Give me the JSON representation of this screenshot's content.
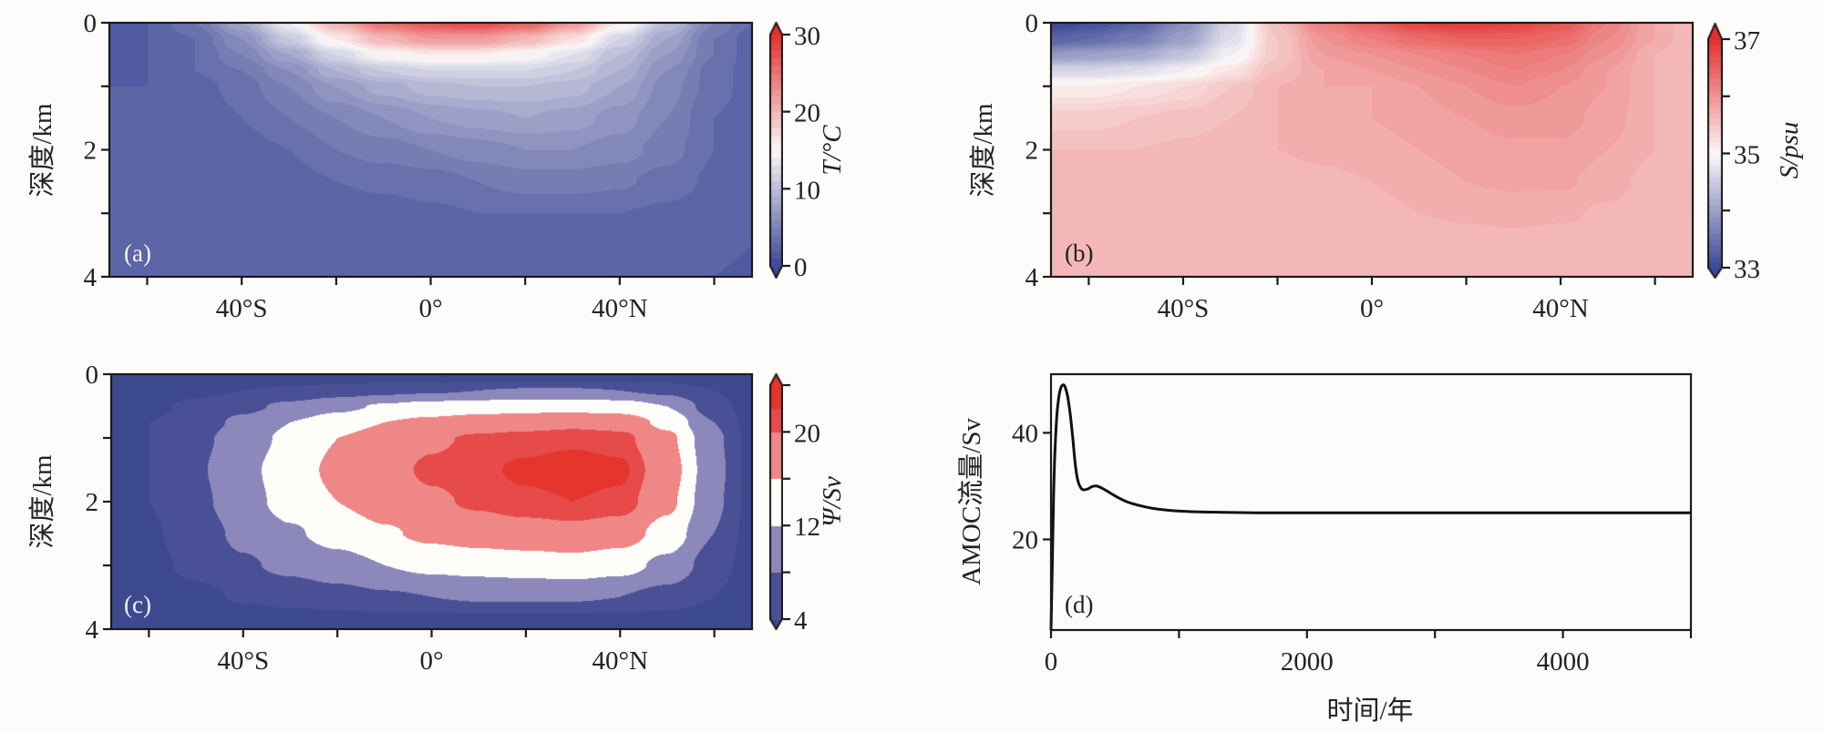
{
  "figure": {
    "background": "#fdfcfa",
    "colors": {
      "cold": "#3c4896",
      "neutral": "#fbf8f8",
      "warm": "#e3302f"
    }
  },
  "chart_data": [
    {
      "id": "a",
      "type": "heatmap",
      "panel_label": "(a)",
      "title": "",
      "xlabel": "",
      "ylabel": "深度/km",
      "colorbar_label": "T/°C",
      "colorbar_ticks": [
        0,
        10,
        20,
        30
      ],
      "colorbar_tick_labels": [
        "0",
        "10",
        "20",
        "30"
      ],
      "colorbar_minor_ticks": [],
      "colorbar_extend": "both",
      "value_range": [
        0,
        30
      ],
      "level_step": 1,
      "center_value": 15,
      "x_ticks": [
        -60,
        -40,
        -20,
        0,
        20,
        40,
        60
      ],
      "x_tick_labels": [
        "",
        "40°S",
        "",
        "0°",
        "",
        "40°N",
        ""
      ],
      "y_ticks": [
        0,
        1,
        2,
        3,
        4
      ],
      "y_tick_labels": [
        "0",
        "",
        "2",
        "",
        "4"
      ],
      "xlim": [
        -68,
        68
      ],
      "ylim": [
        0,
        4
      ],
      "y_inverted": true,
      "x": [
        -68,
        -60,
        -50,
        -40,
        -30,
        -20,
        -10,
        0,
        10,
        20,
        30,
        40,
        50,
        60,
        68
      ],
      "y": [
        0,
        0.25,
        0.5,
        0.75,
        1,
        1.5,
        2,
        2.5,
        3,
        3.5,
        4
      ],
      "z": [
        [
          1,
          2,
          4,
          8,
          14,
          20,
          25,
          27,
          28,
          26,
          22,
          16,
          10,
          5,
          3
        ],
        [
          1,
          2,
          3,
          6,
          11,
          16,
          20,
          22,
          22,
          20,
          17,
          12,
          8,
          4,
          2.5
        ],
        [
          1,
          2,
          3,
          5,
          8,
          12,
          15,
          16,
          16,
          15,
          13,
          10,
          7,
          4,
          2.5
        ],
        [
          1.5,
          2,
          3,
          4,
          6,
          9,
          11,
          12,
          12,
          12,
          11,
          9,
          6,
          3.5,
          2.5
        ],
        [
          2,
          2,
          2.5,
          3.5,
          5,
          7,
          8.5,
          9.5,
          10,
          10,
          9.5,
          8,
          5.5,
          3.5,
          2.5
        ],
        [
          2,
          2,
          2,
          3,
          4,
          5,
          6,
          7,
          7.5,
          8,
          7.5,
          6.5,
          5,
          3,
          2.5
        ],
        [
          2,
          2,
          2,
          2.5,
          3,
          4,
          4.5,
          5,
          5.5,
          6,
          6,
          5.5,
          4.5,
          3,
          2.5
        ],
        [
          2,
          2,
          2,
          2,
          2.5,
          3,
          3.2,
          3.5,
          4,
          4.5,
          4.5,
          4.2,
          3.5,
          2.8,
          2.3
        ],
        [
          2,
          2,
          2,
          2,
          2,
          2.5,
          2.6,
          2.8,
          3,
          3,
          3,
          3,
          2.8,
          2.5,
          2.2
        ],
        [
          2,
          2,
          2,
          2,
          2,
          2.2,
          2.3,
          2.4,
          2.5,
          2.5,
          2.5,
          2.5,
          2.4,
          2.3,
          2
        ],
        [
          2,
          2,
          2,
          2,
          2,
          2,
          2,
          2,
          2.1,
          2.2,
          2.2,
          2.2,
          2.1,
          2,
          1.8
        ]
      ]
    },
    {
      "id": "b",
      "type": "heatmap",
      "panel_label": "(b)",
      "title": "",
      "xlabel": "",
      "ylabel": "深度/km",
      "colorbar_label": "S/psu",
      "colorbar_ticks": [
        33,
        35,
        37
      ],
      "colorbar_tick_labels": [
        "33",
        "35",
        "37"
      ],
      "colorbar_minor_ticks": [
        34,
        36
      ],
      "colorbar_extend": "both",
      "value_range": [
        33,
        37
      ],
      "level_step": 0.1,
      "center_value": 35,
      "x_ticks": [
        -60,
        -40,
        -20,
        0,
        20,
        40,
        60
      ],
      "x_tick_labels": [
        "",
        "40°S",
        "",
        "0°",
        "",
        "40°N",
        ""
      ],
      "y_ticks": [
        0,
        1,
        2,
        3,
        4
      ],
      "y_tick_labels": [
        "0",
        "",
        "2",
        "",
        "4"
      ],
      "xlim": [
        -68,
        68
      ],
      "ylim": [
        0,
        4
      ],
      "y_inverted": true,
      "x": [
        -68,
        -60,
        -50,
        -40,
        -30,
        -20,
        -10,
        0,
        10,
        20,
        30,
        40,
        50,
        60,
        68
      ],
      "y": [
        0,
        0.25,
        0.5,
        0.75,
        1,
        1.5,
        2,
        2.5,
        3,
        3.5,
        4
      ],
      "z": [
        [
          33.0,
          33.1,
          33.3,
          33.8,
          34.6,
          35.6,
          36.2,
          36.5,
          36.8,
          36.9,
          36.8,
          36.6,
          36.2,
          35.8,
          35.6
        ],
        [
          33.3,
          33.4,
          33.6,
          34.0,
          34.7,
          35.5,
          36.0,
          36.2,
          36.4,
          36.5,
          36.5,
          36.4,
          36.1,
          35.8,
          35.6
        ],
        [
          33.9,
          34.0,
          34.1,
          34.4,
          34.9,
          35.5,
          35.9,
          36.0,
          36.1,
          36.2,
          36.3,
          36.2,
          36.0,
          35.7,
          35.6
        ],
        [
          34.6,
          34.6,
          34.7,
          34.9,
          35.2,
          35.6,
          35.8,
          35.9,
          36.0,
          36.1,
          36.2,
          36.1,
          35.9,
          35.7,
          35.6
        ],
        [
          35.1,
          35.1,
          35.2,
          35.3,
          35.5,
          35.7,
          35.8,
          35.8,
          35.9,
          36.0,
          36.1,
          36.0,
          35.9,
          35.7,
          35.6
        ],
        [
          35.45,
          35.45,
          35.5,
          35.55,
          35.6,
          35.7,
          35.75,
          35.8,
          35.85,
          35.9,
          35.95,
          35.95,
          35.85,
          35.7,
          35.6
        ],
        [
          35.6,
          35.6,
          35.6,
          35.62,
          35.65,
          35.7,
          35.72,
          35.75,
          35.8,
          35.85,
          35.88,
          35.88,
          35.8,
          35.7,
          35.6
        ],
        [
          35.6,
          35.6,
          35.6,
          35.6,
          35.62,
          35.65,
          35.68,
          35.7,
          35.75,
          35.8,
          35.82,
          35.82,
          35.75,
          35.65,
          35.6
        ],
        [
          35.6,
          35.6,
          35.6,
          35.6,
          35.6,
          35.62,
          35.64,
          35.66,
          35.7,
          35.72,
          35.74,
          35.72,
          35.68,
          35.62,
          35.6
        ],
        [
          35.6,
          35.6,
          35.6,
          35.6,
          35.6,
          35.6,
          35.61,
          35.62,
          35.63,
          35.64,
          35.65,
          35.64,
          35.62,
          35.6,
          35.6
        ],
        [
          35.6,
          35.6,
          35.6,
          35.6,
          35.6,
          35.6,
          35.6,
          35.6,
          35.6,
          35.6,
          35.6,
          35.6,
          35.6,
          35.6,
          35.6
        ]
      ]
    },
    {
      "id": "c",
      "type": "heatmap",
      "panel_label": "(c)",
      "title": "",
      "xlabel": "",
      "ylabel": "深度/km",
      "colorbar_label": "Ψ/Sv",
      "colorbar_ticks": [
        4,
        12,
        20
      ],
      "colorbar_tick_labels": [
        "4",
        "12",
        "20"
      ],
      "colorbar_minor_ticks": [
        8,
        16,
        24
      ],
      "colorbar_extend": "both",
      "value_range": [
        4,
        24
      ],
      "levels": [
        4,
        8,
        12,
        16,
        20,
        22
      ],
      "level_colors": [
        "#3d4a8f",
        "#4a5096",
        "#8d88bc",
        "#fffdfa",
        "#ee8786",
        "#e64b4a",
        "#e5352d"
      ],
      "x_ticks": [
        -60,
        -40,
        -20,
        0,
        20,
        40,
        60
      ],
      "x_tick_labels": [
        "",
        "40°S",
        "",
        "0°",
        "",
        "40°N",
        ""
      ],
      "y_ticks": [
        0,
        1,
        2,
        3,
        4
      ],
      "y_tick_labels": [
        "0",
        "",
        "2",
        "",
        "4"
      ],
      "xlim": [
        -68,
        68
      ],
      "ylim": [
        0,
        4
      ],
      "y_inverted": true,
      "x": [
        -68,
        -60,
        -50,
        -40,
        -30,
        -20,
        -10,
        0,
        10,
        20,
        30,
        40,
        50,
        60,
        68
      ],
      "y": [
        0,
        0.25,
        0.5,
        0.75,
        1,
        1.5,
        2,
        2.5,
        3,
        3.5,
        4
      ],
      "z": [
        [
          0,
          0,
          0,
          0,
          0,
          0,
          0,
          0,
          0,
          0,
          0,
          0,
          0,
          0,
          0
        ],
        [
          1,
          2,
          3,
          4,
          5,
          6,
          7,
          7.5,
          8,
          8.5,
          8.5,
          8,
          7,
          4,
          1
        ],
        [
          2,
          3,
          5,
          7,
          9,
          11,
          12.5,
          13.5,
          14,
          14.5,
          14.5,
          14,
          12,
          6,
          2
        ],
        [
          2,
          4,
          6,
          9,
          12,
          14,
          16,
          17,
          18,
          18.5,
          19,
          18.5,
          15,
          8,
          2.5
        ],
        [
          2,
          4,
          7,
          10,
          13,
          16,
          18,
          19.5,
          20.5,
          21,
          21.5,
          21,
          17,
          9,
          3
        ],
        [
          2,
          4,
          7.5,
          11,
          14,
          17,
          19,
          20.5,
          21.5,
          22.5,
          23.2,
          22.5,
          18,
          9.5,
          3
        ],
        [
          2,
          4,
          7,
          10.5,
          13.5,
          16,
          18,
          19.5,
          20.5,
          21.5,
          22,
          21.5,
          17,
          9,
          3
        ],
        [
          2,
          3.5,
          6,
          9,
          11.5,
          13.5,
          15.5,
          17,
          18,
          18.5,
          19,
          18,
          14.5,
          8,
          2.5
        ],
        [
          1.5,
          3,
          5,
          7.5,
          9,
          10.5,
          12,
          13,
          13.5,
          14,
          14.5,
          13.5,
          11,
          6,
          2
        ],
        [
          1,
          2,
          3,
          4.5,
          5.5,
          6.5,
          7.5,
          8,
          8.5,
          8.5,
          8.5,
          8,
          6.5,
          4,
          1.5
        ],
        [
          0,
          0,
          0,
          0,
          0,
          0,
          0,
          0,
          0,
          0,
          0,
          0,
          0,
          0,
          0
        ]
      ]
    },
    {
      "id": "d",
      "type": "line",
      "panel_label": "(d)",
      "title": "",
      "xlabel": "时间/年",
      "ylabel": "AMOC流量/Sv",
      "x_ticks": [
        0,
        1000,
        2000,
        3000,
        4000,
        5000
      ],
      "x_tick_labels": [
        "0",
        "",
        "2000",
        "",
        "4000",
        ""
      ],
      "y_ticks": [
        20,
        40
      ],
      "y_tick_labels": [
        "20",
        "40"
      ],
      "xlim": [
        0,
        5000
      ],
      "ylim": [
        3,
        51
      ],
      "grid": false,
      "series": [
        {
          "name": "AMOC",
          "color": "#111111",
          "x": [
            0,
            10,
            20,
            30,
            45,
            60,
            75,
            93,
            110,
            130,
            150,
            170,
            190,
            210,
            235,
            257,
            290,
            320,
            357,
            400,
            450,
            520,
            600,
            700,
            800,
            950,
            1100,
            1300,
            1600,
            2000,
            2500,
            3000,
            3500,
            4000,
            4500,
            5000
          ],
          "y": [
            3,
            15,
            28,
            36,
            43,
            46.5,
            48.3,
            49,
            48.6,
            46.8,
            43.5,
            39,
            34,
            31,
            29.6,
            29.3,
            29.5,
            29.9,
            30,
            29.6,
            28.9,
            27.9,
            27,
            26.3,
            25.8,
            25.4,
            25.2,
            25.1,
            25.0,
            25.0,
            25.0,
            25.0,
            25.0,
            25.0,
            25.0,
            25.0
          ]
        }
      ]
    }
  ]
}
